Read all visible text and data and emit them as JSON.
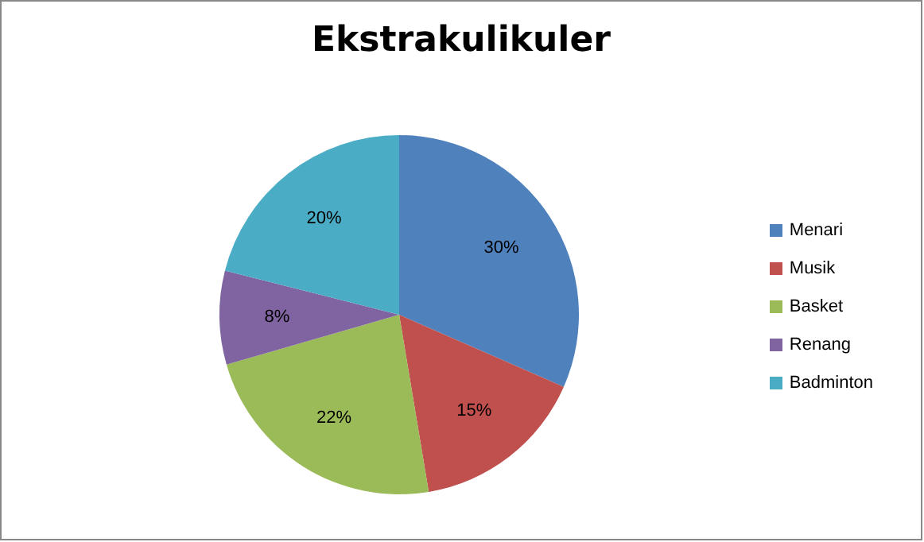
{
  "chart_data": {
    "type": "pie",
    "title": "Ekstrakulikuler",
    "categories": [
      "Menari",
      "Musik",
      "Basket",
      "Renang",
      "Badminton"
    ],
    "values": [
      30,
      15,
      22,
      8,
      20
    ],
    "value_labels": [
      "30%",
      "15%",
      "22%",
      "8%",
      "20%"
    ],
    "colors": [
      "#4f81bd",
      "#c0504d",
      "#9bbb59",
      "#8064a2",
      "#4bacc6"
    ],
    "legend": "right"
  }
}
